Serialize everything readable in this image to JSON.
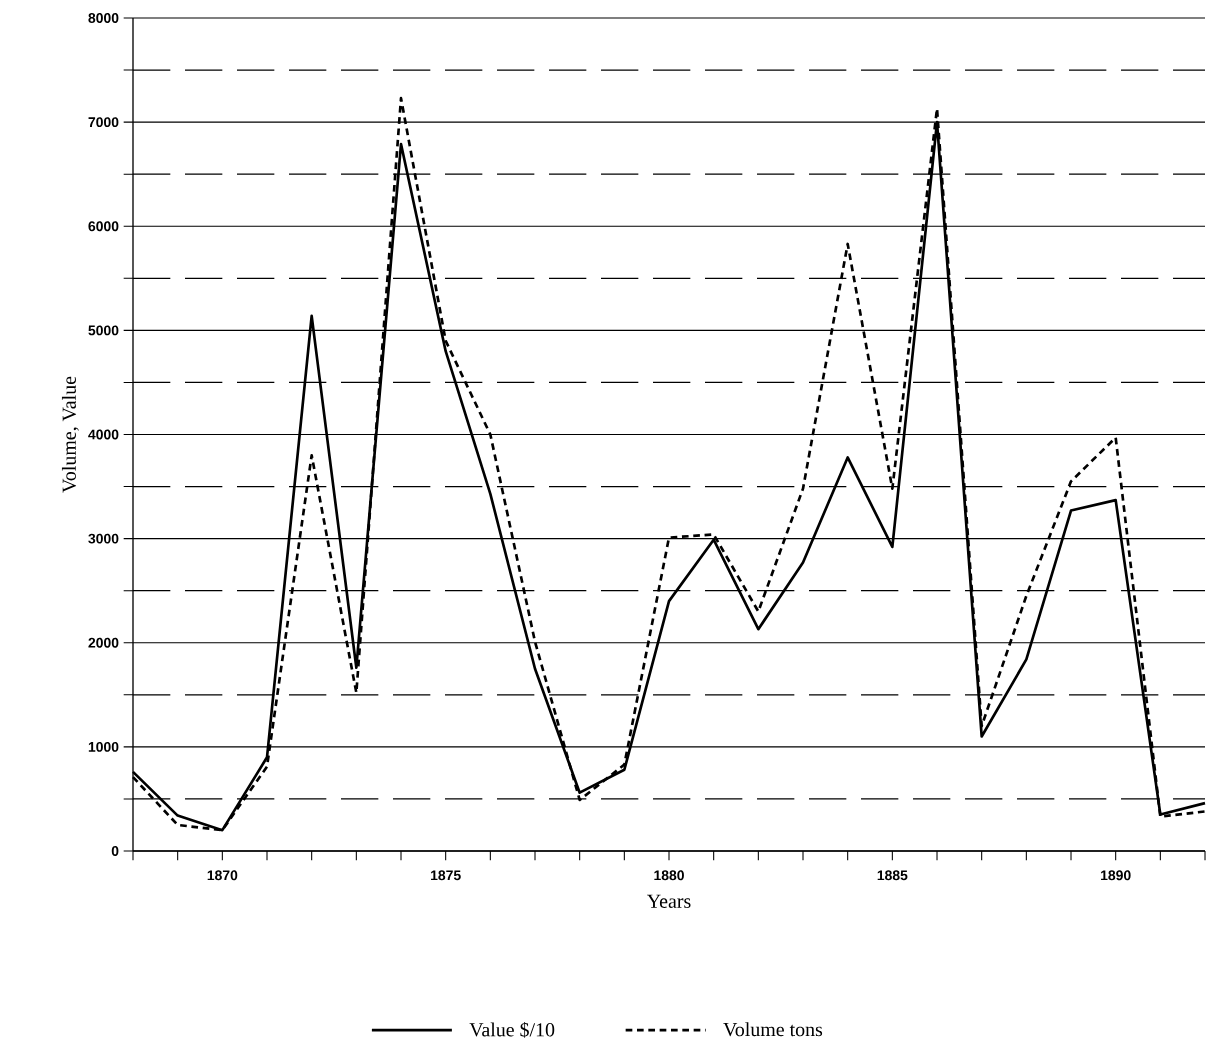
{
  "chart_data": {
    "type": "line",
    "xlabel": "Years",
    "ylabel": "Volume, Value",
    "x": [
      1868,
      1869,
      1870,
      1871,
      1872,
      1873,
      1874,
      1875,
      1876,
      1877,
      1878,
      1879,
      1880,
      1881,
      1882,
      1883,
      1884,
      1885,
      1886,
      1887,
      1888,
      1889,
      1890,
      1891,
      1892
    ],
    "series": [
      {
        "name": "Value $/10",
        "color": "#000000",
        "line_style": "solid",
        "values": [
          760,
          340,
          200,
          900,
          5140,
          1760,
          6790,
          4800,
          3430,
          1750,
          560,
          780,
          2400,
          2990,
          2130,
          2770,
          3780,
          2920,
          7000,
          1100,
          1840,
          3270,
          3370,
          350,
          460
        ]
      },
      {
        "name": "Volume tons",
        "color": "#000000",
        "line_style": "dashed",
        "values": [
          710,
          250,
          200,
          810,
          3800,
          1520,
          7230,
          4900,
          4000,
          2010,
          490,
          830,
          3010,
          3040,
          2300,
          3480,
          5830,
          3480,
          7130,
          1200,
          2450,
          3550,
          3970,
          330,
          380
        ]
      }
    ],
    "xlim": [
      1868,
      1892
    ],
    "xticks": [
      {
        "value": 1868,
        "label": null
      },
      {
        "value": 1869,
        "label": null
      },
      1870,
      {
        "value": 1871,
        "label": null
      },
      {
        "value": 1872,
        "label": null
      },
      {
        "value": 1873,
        "label": null
      },
      {
        "value": 1874,
        "label": null
      },
      1875,
      {
        "value": 1876,
        "label": null
      },
      {
        "value": 1877,
        "label": null
      },
      {
        "value": 1878,
        "label": null
      },
      {
        "value": 1879,
        "label": null
      },
      1880,
      {
        "value": 1881,
        "label": null
      },
      {
        "value": 1882,
        "label": null
      },
      {
        "value": 1883,
        "label": null
      },
      {
        "value": 1884,
        "label": null
      },
      1885,
      {
        "value": 1886,
        "label": null
      },
      {
        "value": 1887,
        "label": null
      },
      {
        "value": 1888,
        "label": null
      },
      {
        "value": 1889,
        "label": null
      },
      1890,
      {
        "value": 1891,
        "label": null
      },
      {
        "value": 1892,
        "label": null
      }
    ],
    "ylim": [
      0,
      8000
    ],
    "yticks": [
      0,
      {
        "value": 500,
        "label": null
      },
      1000,
      {
        "value": 1500,
        "label": null
      },
      2000,
      {
        "value": 2500,
        "label": null
      },
      3000,
      {
        "value": 3500,
        "label": null
      },
      4000,
      {
        "value": 4500,
        "label": null
      },
      5000,
      {
        "value": 5500,
        "label": null
      },
      6000,
      {
        "value": 6500,
        "label": null
      },
      7000,
      {
        "value": 7500,
        "label": null
      },
      8000
    ],
    "grid": "y",
    "legend": "bottom"
  }
}
